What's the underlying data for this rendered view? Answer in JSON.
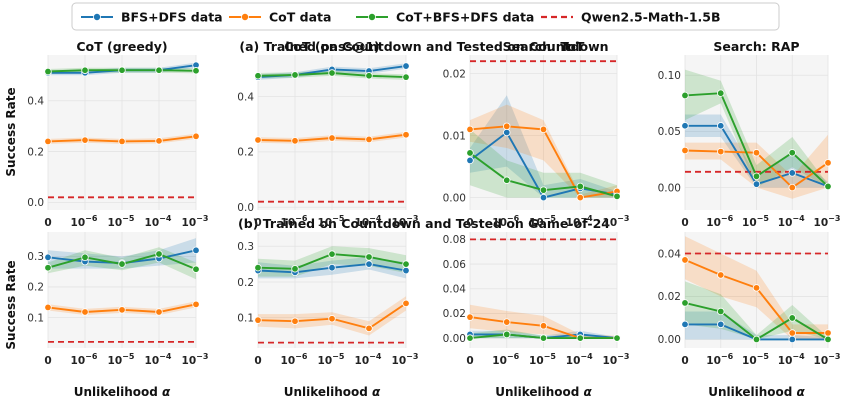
{
  "legend": [
    {
      "key": "bfs",
      "label": "BFS+DFS data",
      "color": "#1f77b4",
      "style": "line-marker"
    },
    {
      "key": "cot",
      "label": "CoT data",
      "color": "#ff7f0e",
      "style": "line-marker"
    },
    {
      "key": "mix",
      "label": "CoT+BFS+DFS data",
      "color": "#2ca02c",
      "style": "line-marker"
    },
    {
      "key": "base",
      "label": "Qwen2.5-Math-1.5B",
      "color": "#d62728",
      "style": "dashed"
    }
  ],
  "row_titles": [
    "(a) Trained on Countdown and Tested on Countdown",
    "(b) Trained on Countdown and Tested on Game-of-24"
  ],
  "ylabel": "Success Rate",
  "xlabel_text": "Unlikelihood",
  "xlabel_symbol": "α",
  "x_ticks": [
    {
      "base": "0",
      "exp": ""
    },
    {
      "base": "10",
      "exp": "−6"
    },
    {
      "base": "10",
      "exp": "−5"
    },
    {
      "base": "10",
      "exp": "−4"
    },
    {
      "base": "10",
      "exp": "−3"
    }
  ],
  "chart_data": [
    {
      "type": "line",
      "row": 0,
      "col": 0,
      "title": "CoT (greedy)",
      "ylim": [
        -0.03,
        0.58
      ],
      "yticks": [
        {
          "v": 0.0,
          "label": "0.0"
        },
        {
          "v": 0.2,
          "label": "0.2"
        },
        {
          "v": 0.4,
          "label": "0.4"
        }
      ],
      "baseline": 0.02,
      "series": [
        {
          "key": "bfs",
          "values": [
            0.51,
            0.51,
            0.52,
            0.52,
            0.54
          ],
          "lo": [
            0.5,
            0.5,
            0.51,
            0.51,
            0.53
          ],
          "hi": [
            0.52,
            0.52,
            0.53,
            0.53,
            0.55
          ]
        },
        {
          "key": "cot",
          "values": [
            0.24,
            0.245,
            0.24,
            0.242,
            0.26
          ],
          "lo": [
            0.23,
            0.235,
            0.23,
            0.232,
            0.25
          ],
          "hi": [
            0.25,
            0.255,
            0.25,
            0.252,
            0.27
          ]
        },
        {
          "key": "mix",
          "values": [
            0.515,
            0.52,
            0.52,
            0.52,
            0.518
          ],
          "lo": [
            0.505,
            0.51,
            0.51,
            0.51,
            0.508
          ],
          "hi": [
            0.525,
            0.53,
            0.53,
            0.53,
            0.528
          ]
        }
      ]
    },
    {
      "type": "line",
      "row": 0,
      "col": 1,
      "title": "CoT (pass@1)",
      "ylim": [
        -0.01,
        0.55
      ],
      "yticks": [
        {
          "v": 0.0,
          "label": "0.0"
        },
        {
          "v": 0.2,
          "label": "0.2"
        },
        {
          "v": 0.4,
          "label": "0.4"
        }
      ],
      "baseline": 0.02,
      "series": [
        {
          "key": "bfs",
          "values": [
            0.47,
            0.478,
            0.498,
            0.492,
            0.51
          ],
          "lo": [
            0.46,
            0.468,
            0.488,
            0.482,
            0.5
          ],
          "hi": [
            0.48,
            0.488,
            0.508,
            0.502,
            0.52
          ]
        },
        {
          "key": "cot",
          "values": [
            0.243,
            0.24,
            0.25,
            0.245,
            0.262
          ],
          "lo": [
            0.233,
            0.23,
            0.24,
            0.235,
            0.252
          ],
          "hi": [
            0.253,
            0.25,
            0.26,
            0.255,
            0.272
          ]
        },
        {
          "key": "mix",
          "values": [
            0.475,
            0.478,
            0.485,
            0.475,
            0.47
          ],
          "lo": [
            0.465,
            0.468,
            0.475,
            0.465,
            0.46
          ],
          "hi": [
            0.485,
            0.488,
            0.495,
            0.485,
            0.48
          ]
        }
      ]
    },
    {
      "type": "line",
      "row": 0,
      "col": 2,
      "title": "Search: ToT",
      "ylim": [
        -0.002,
        0.023
      ],
      "yticks": [
        {
          "v": 0.0,
          "label": "0.00"
        },
        {
          "v": 0.01,
          "label": "0.01"
        },
        {
          "v": 0.02,
          "label": "0.02"
        }
      ],
      "baseline": 0.022,
      "series": [
        {
          "key": "bfs",
          "values": [
            0.006,
            0.0105,
            0.0,
            0.0015,
            0.0005
          ],
          "lo": [
            0.004,
            0.005,
            0.0,
            0.0,
            0.0
          ],
          "hi": [
            0.008,
            0.0165,
            0.002,
            0.003,
            0.001
          ]
        },
        {
          "key": "cot",
          "values": [
            0.011,
            0.0115,
            0.011,
            0.0,
            0.001
          ],
          "lo": [
            0.009,
            0.008,
            0.006,
            0.0,
            0.0
          ],
          "hi": [
            0.0125,
            0.015,
            0.0125,
            0.0005,
            0.002
          ]
        },
        {
          "key": "mix",
          "values": [
            0.0072,
            0.0028,
            0.0012,
            0.0018,
            0.0002
          ],
          "lo": [
            0.002,
            0.0,
            0.0,
            0.0,
            0.0
          ],
          "hi": [
            0.011,
            0.006,
            0.004,
            0.004,
            0.002
          ]
        }
      ]
    },
    {
      "type": "line",
      "row": 0,
      "col": 3,
      "title": "Search: RAP",
      "ylim": [
        -0.02,
        0.118
      ],
      "yticks": [
        {
          "v": 0.0,
          "label": "0.00"
        },
        {
          "v": 0.05,
          "label": "0.05"
        },
        {
          "v": 0.1,
          "label": "0.10"
        }
      ],
      "baseline": 0.014,
      "series": [
        {
          "key": "bfs",
          "values": [
            0.055,
            0.055,
            0.003,
            0.013,
            0.001
          ],
          "lo": [
            0.045,
            0.045,
            0.0,
            0.0,
            0.0
          ],
          "hi": [
            0.065,
            0.065,
            0.01,
            0.03,
            0.005
          ]
        },
        {
          "key": "cot",
          "values": [
            0.033,
            0.032,
            0.031,
            0.0,
            0.022
          ],
          "lo": [
            0.025,
            0.025,
            0.0,
            -0.01,
            0.0
          ],
          "hi": [
            0.04,
            0.04,
            0.04,
            0.01,
            0.047
          ]
        },
        {
          "key": "mix",
          "values": [
            0.082,
            0.084,
            0.01,
            0.031,
            0.001
          ],
          "lo": [
            0.06,
            0.075,
            0.0,
            0.018,
            0.0
          ],
          "hi": [
            0.105,
            0.095,
            0.02,
            0.045,
            0.003
          ]
        }
      ]
    },
    {
      "type": "line",
      "row": 1,
      "col": 0,
      "title": "",
      "ylim": [
        0.0,
        0.38
      ],
      "yticks": [
        {
          "v": 0.1,
          "label": "0.1"
        },
        {
          "v": 0.2,
          "label": "0.2"
        },
        {
          "v": 0.3,
          "label": "0.3"
        }
      ],
      "baseline": 0.02,
      "series": [
        {
          "key": "bfs",
          "values": [
            0.297,
            0.283,
            0.278,
            0.293,
            0.32
          ],
          "lo": [
            0.26,
            0.26,
            0.26,
            0.27,
            0.28
          ],
          "hi": [
            0.32,
            0.31,
            0.3,
            0.32,
            0.36
          ]
        },
        {
          "key": "cot",
          "values": [
            0.133,
            0.118,
            0.125,
            0.118,
            0.143
          ],
          "lo": [
            0.123,
            0.108,
            0.115,
            0.108,
            0.133
          ],
          "hi": [
            0.143,
            0.128,
            0.135,
            0.128,
            0.153
          ]
        },
        {
          "key": "mix",
          "values": [
            0.263,
            0.297,
            0.275,
            0.308,
            0.258
          ],
          "lo": [
            0.245,
            0.27,
            0.255,
            0.28,
            0.225
          ],
          "hi": [
            0.28,
            0.32,
            0.295,
            0.33,
            0.28
          ]
        }
      ]
    },
    {
      "type": "line",
      "row": 1,
      "col": 1,
      "title": "",
      "ylim": [
        0.015,
        0.34
      ],
      "yticks": [
        {
          "v": 0.1,
          "label": "0.1"
        },
        {
          "v": 0.2,
          "label": "0.2"
        },
        {
          "v": 0.3,
          "label": "0.3"
        }
      ],
      "baseline": 0.03,
      "series": [
        {
          "key": "bfs",
          "values": [
            0.232,
            0.227,
            0.24,
            0.25,
            0.232
          ],
          "lo": [
            0.21,
            0.21,
            0.22,
            0.235,
            0.21
          ],
          "hi": [
            0.255,
            0.245,
            0.26,
            0.27,
            0.255
          ]
        },
        {
          "key": "cot",
          "values": [
            0.093,
            0.09,
            0.097,
            0.07,
            0.14
          ],
          "lo": [
            0.075,
            0.07,
            0.08,
            0.05,
            0.12
          ],
          "hi": [
            0.11,
            0.11,
            0.115,
            0.09,
            0.16
          ]
        },
        {
          "key": "mix",
          "values": [
            0.24,
            0.237,
            0.278,
            0.27,
            0.25
          ],
          "lo": [
            0.215,
            0.215,
            0.25,
            0.245,
            0.225
          ],
          "hi": [
            0.265,
            0.26,
            0.3,
            0.295,
            0.275
          ]
        }
      ]
    },
    {
      "type": "line",
      "row": 1,
      "col": 2,
      "title": "",
      "ylim": [
        -0.008,
        0.086
      ],
      "yticks": [
        {
          "v": 0.0,
          "label": "0.00"
        },
        {
          "v": 0.02,
          "label": "0.02"
        },
        {
          "v": 0.04,
          "label": "0.04"
        },
        {
          "v": 0.06,
          "label": "0.06"
        },
        {
          "v": 0.08,
          "label": "0.08"
        }
      ],
      "baseline": 0.08,
      "series": [
        {
          "key": "bfs",
          "values": [
            0.003,
            0.003,
            0.0,
            0.003,
            0.0
          ],
          "lo": [
            0.0,
            0.0,
            0.0,
            0.0,
            0.0
          ],
          "hi": [
            0.006,
            0.006,
            0.002,
            0.006,
            0.001
          ]
        },
        {
          "key": "cot",
          "values": [
            0.017,
            0.013,
            0.01,
            0.0,
            0.0
          ],
          "lo": [
            0.008,
            0.005,
            0.003,
            0.0,
            0.0
          ],
          "hi": [
            0.027,
            0.022,
            0.018,
            0.003,
            0.002
          ]
        },
        {
          "key": "mix",
          "values": [
            0.0,
            0.003,
            0.0,
            0.0,
            0.0
          ],
          "lo": [
            0.0,
            0.0,
            0.0,
            0.0,
            0.0
          ],
          "hi": [
            0.004,
            0.007,
            0.002,
            0.002,
            0.001
          ]
        }
      ]
    },
    {
      "type": "line",
      "row": 1,
      "col": 3,
      "title": "",
      "ylim": [
        -0.004,
        0.05
      ],
      "yticks": [
        {
          "v": 0.0,
          "label": "0.00"
        },
        {
          "v": 0.02,
          "label": "0.02"
        },
        {
          "v": 0.04,
          "label": "0.04"
        }
      ],
      "baseline": 0.04,
      "series": [
        {
          "key": "bfs",
          "values": [
            0.007,
            0.007,
            0.0,
            0.0,
            0.0
          ],
          "lo": [
            0.0,
            0.0,
            0.0,
            0.0,
            0.0
          ],
          "hi": [
            0.013,
            0.013,
            0.002,
            0.002,
            0.001
          ]
        },
        {
          "key": "cot",
          "values": [
            0.037,
            0.03,
            0.024,
            0.003,
            0.003
          ],
          "lo": [
            0.028,
            0.02,
            0.015,
            0.0,
            0.0
          ],
          "hi": [
            0.048,
            0.04,
            0.032,
            0.007,
            0.007
          ]
        },
        {
          "key": "mix",
          "values": [
            0.017,
            0.013,
            0.0,
            0.01,
            0.0
          ],
          "lo": [
            0.007,
            0.005,
            0.0,
            0.004,
            0.0
          ],
          "hi": [
            0.027,
            0.021,
            0.002,
            0.016,
            0.001
          ]
        }
      ]
    }
  ]
}
